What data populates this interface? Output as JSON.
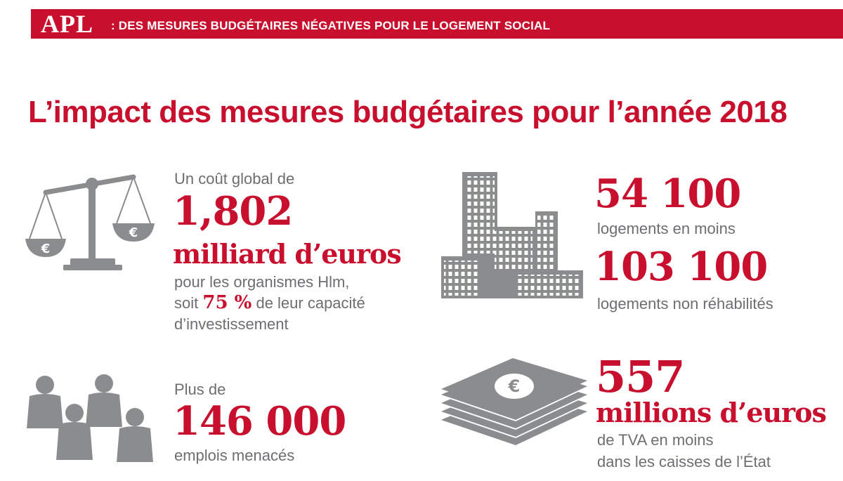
{
  "banner": {
    "logo": "APL",
    "text": ": DES MESURES BUDGÉTAIRES NÉGATIVES POUR LE LOGEMENT SOCIAL"
  },
  "title": "L’impact des mesures budgétaires pour l’année 2018",
  "cost": {
    "intro": "Un coût global de",
    "amount": "1,802",
    "unit": "milliard d’euros",
    "line1": "pour les organismes Hlm,",
    "line2_pre": "soit",
    "percent": "75 %",
    "line2_post": "de leur capacité",
    "line3": "d’investissement",
    "icon": "balance-scale-icon",
    "icon_symbol": "€"
  },
  "housing": {
    "value1": "54 100",
    "label1": "logements en moins",
    "value2": "103 100",
    "label2": "logements non réhabilités",
    "icon": "buildings-icon"
  },
  "jobs": {
    "intro": "Plus de",
    "value": "146 000",
    "label": "emplois menacés",
    "icon": "people-icon"
  },
  "vat": {
    "value": "557",
    "unit": "millions d’euros",
    "line1": "de TVA en moins",
    "line2": "dans les caisses de l’État",
    "icon": "banknote-stack-icon",
    "icon_symbol": "€"
  },
  "colors": {
    "accent": "#c8102e",
    "text": "#6d6e71",
    "icon": "#8a8c8e"
  }
}
